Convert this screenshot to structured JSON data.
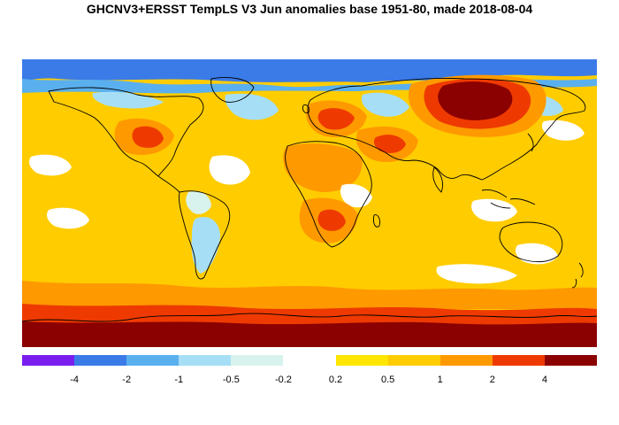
{
  "title": "GHCNV3+ERSST TempLS V3 Jun anomalies base 1951-80, made 2018-08-04",
  "legend": {
    "colors": [
      "#7a1ef0",
      "#3a7be8",
      "#5ab0ee",
      "#a6dff5",
      "#d8f3ee",
      "#ffffff",
      "#ffe600",
      "#ffcc00",
      "#ff9900",
      "#ee3a00",
      "#8b0000"
    ],
    "tick_labels": [
      "-4",
      "-2",
      "-1",
      "-0.5",
      "-0.2",
      "0.2",
      "0.5",
      "1",
      "2",
      "4"
    ]
  },
  "map": {
    "background_color": "#ffcc00",
    "colors": {
      "deep_red": "#8b0000",
      "red": "#ee3a00",
      "orange": "#ff9900",
      "yellow": "#ffe600",
      "gold": "#ffcc00",
      "white": "#ffffff",
      "pale": "#d8f3ee",
      "light_blue": "#a6dff5",
      "mid_blue": "#5ab0ee",
      "blue": "#3a7be8"
    }
  }
}
